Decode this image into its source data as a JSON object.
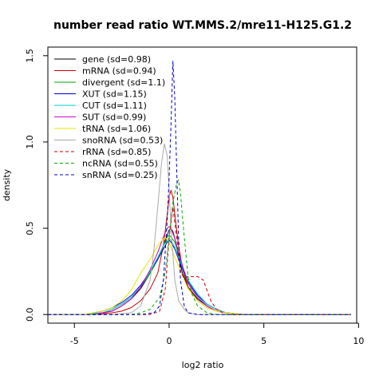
{
  "chart_data": {
    "type": "line",
    "title": "number read ratio WT.MMS.2/mre11-H125.G1.2",
    "xlabel": "log2 ratio",
    "ylabel": "density",
    "xlim": [
      -6.4,
      9.9
    ],
    "ylim": [
      -0.05,
      1.55
    ],
    "x_ticks": [
      -5,
      0,
      5,
      10
    ],
    "x_tick_labels": [
      "-5",
      "0",
      "5",
      "10"
    ],
    "y_ticks": [
      0.0,
      0.5,
      1.0,
      1.5
    ],
    "y_tick_labels": [
      "0.0",
      "0.5",
      "1.0",
      "1.5"
    ],
    "grid": false,
    "legend_position": "top-left",
    "series": [
      {
        "name": "gene (sd=0.98)",
        "color": "#000000",
        "dash": "solid",
        "x": [
          -6.4,
          -4.5,
          -3.5,
          -3,
          -2.5,
          -2,
          -1.5,
          -1,
          -0.6,
          -0.3,
          -0.1,
          0,
          0.1,
          0.2,
          0.35,
          0.5,
          0.7,
          1,
          1.5,
          2,
          2.5,
          3,
          4,
          9.6
        ],
        "y": [
          0,
          0,
          0.01,
          0.02,
          0.05,
          0.09,
          0.15,
          0.24,
          0.32,
          0.4,
          0.46,
          0.49,
          0.5,
          0.48,
          0.42,
          0.33,
          0.24,
          0.16,
          0.09,
          0.05,
          0.02,
          0.01,
          0,
          0
        ]
      },
      {
        "name": "mRNA (sd=0.94)",
        "color": "#cc0000",
        "dash": "solid",
        "x": [
          -6.4,
          -4,
          -3,
          -2.5,
          -2,
          -1.5,
          -1,
          -0.6,
          -0.3,
          -0.1,
          0,
          0.1,
          0.2,
          0.3,
          0.5,
          0.7,
          1,
          1.5,
          2,
          2.5,
          3,
          4,
          9.6
        ],
        "y": [
          0,
          0,
          0.01,
          0.02,
          0.04,
          0.08,
          0.15,
          0.24,
          0.4,
          0.58,
          0.68,
          0.72,
          0.68,
          0.58,
          0.4,
          0.27,
          0.16,
          0.08,
          0.04,
          0.02,
          0.01,
          0,
          0
        ]
      },
      {
        "name": "divergent (sd=1.1)",
        "color": "#00aa00",
        "dash": "solid",
        "x": [
          -6.4,
          -4.5,
          -3.5,
          -3,
          -2.5,
          -2,
          -1.5,
          -1,
          -0.6,
          -0.3,
          -0.1,
          0,
          0.1,
          0.3,
          0.5,
          0.8,
          1,
          1.5,
          2,
          2.5,
          3,
          4,
          9.6
        ],
        "y": [
          0,
          0,
          0.01,
          0.03,
          0.06,
          0.1,
          0.16,
          0.24,
          0.32,
          0.4,
          0.45,
          0.46,
          0.45,
          0.42,
          0.35,
          0.25,
          0.19,
          0.11,
          0.06,
          0.03,
          0.01,
          0,
          0
        ]
      },
      {
        "name": "XUT (sd=1.15)",
        "color": "#0000cc",
        "dash": "solid",
        "x": [
          -6.4,
          -4.5,
          -3.5,
          -3,
          -2.5,
          -2,
          -1.5,
          -1,
          -0.6,
          -0.3,
          -0.1,
          0,
          0.1,
          0.3,
          0.5,
          0.8,
          1,
          1.5,
          2,
          2.5,
          3,
          4,
          9.6
        ],
        "y": [
          0,
          0,
          0.02,
          0.04,
          0.07,
          0.11,
          0.17,
          0.25,
          0.32,
          0.38,
          0.42,
          0.43,
          0.42,
          0.38,
          0.32,
          0.24,
          0.19,
          0.11,
          0.06,
          0.03,
          0.01,
          0,
          0
        ]
      },
      {
        "name": "CUT (sd=1.11)",
        "color": "#00cccc",
        "dash": "solid",
        "x": [
          -6.4,
          -4.5,
          -3.5,
          -3,
          -2.5,
          -2,
          -1.5,
          -1,
          -0.6,
          -0.3,
          -0.1,
          0,
          0.1,
          0.3,
          0.5,
          0.8,
          1,
          1.5,
          2,
          2.5,
          3,
          4,
          9.6
        ],
        "y": [
          0,
          0,
          0.01,
          0.03,
          0.06,
          0.1,
          0.16,
          0.25,
          0.33,
          0.4,
          0.43,
          0.44,
          0.43,
          0.39,
          0.33,
          0.25,
          0.2,
          0.12,
          0.06,
          0.03,
          0.01,
          0,
          0
        ]
      },
      {
        "name": "SUT (sd=0.99)",
        "color": "#cc00cc",
        "dash": "solid",
        "x": [
          -6.4,
          -4,
          -3.5,
          -3,
          -2.5,
          -2,
          -1.5,
          -1,
          -0.6,
          -0.3,
          -0.1,
          0,
          0.1,
          0.3,
          0.5,
          0.8,
          1,
          1.5,
          2,
          2.5,
          3,
          4,
          9.6
        ],
        "y": [
          0,
          0,
          0.01,
          0.02,
          0.05,
          0.09,
          0.16,
          0.26,
          0.36,
          0.45,
          0.5,
          0.51,
          0.5,
          0.44,
          0.36,
          0.25,
          0.18,
          0.1,
          0.05,
          0.02,
          0.01,
          0,
          0
        ]
      },
      {
        "name": "tRNA (sd=1.06)",
        "color": "#e6e600",
        "dash": "solid",
        "x": [
          -6.4,
          -4.5,
          -4,
          -3.5,
          -3,
          -2.5,
          -2,
          -1.5,
          -1,
          -0.6,
          -0.3,
          -0.1,
          0,
          0.2,
          0.5,
          0.8,
          1,
          1.5,
          2,
          2.5,
          3,
          4,
          9.6
        ],
        "y": [
          0,
          0,
          0.01,
          0.02,
          0.04,
          0.08,
          0.14,
          0.24,
          0.32,
          0.4,
          0.44,
          0.44,
          0.42,
          0.36,
          0.28,
          0.2,
          0.15,
          0.08,
          0.04,
          0.02,
          0.01,
          0,
          0
        ]
      },
      {
        "name": "snoRNA (sd=0.53)",
        "color": "#aaaaaa",
        "dash": "solid",
        "x": [
          -6.4,
          -3,
          -2,
          -1.5,
          -1,
          -0.8,
          -0.6,
          -0.4,
          -0.25,
          -0.1,
          0,
          0.1,
          0.3,
          0.5,
          0.8,
          1,
          1.5,
          2,
          9.6
        ],
        "y": [
          0,
          0,
          0.01,
          0.05,
          0.2,
          0.38,
          0.62,
          0.88,
          0.99,
          0.92,
          0.72,
          0.5,
          0.2,
          0.08,
          0.03,
          0.01,
          0,
          0,
          0
        ]
      },
      {
        "name": "rRNA (sd=0.85)",
        "color": "#cc0000",
        "dash": "dashed",
        "x": [
          -6.4,
          -2,
          -1,
          -0.5,
          -0.2,
          0,
          0.2,
          0.4,
          0.6,
          0.8,
          1,
          1.2,
          1.5,
          1.8,
          2,
          2.2,
          2.5,
          3,
          9.6
        ],
        "y": [
          0,
          0,
          0,
          0.02,
          0.15,
          0.45,
          0.62,
          0.45,
          0.25,
          0.21,
          0.22,
          0.22,
          0.22,
          0.2,
          0.14,
          0.08,
          0.03,
          0,
          0
        ]
      },
      {
        "name": "ncRNA (sd=0.55)",
        "color": "#00aa00",
        "dash": "dashed",
        "x": [
          -6.4,
          -2,
          -1.5,
          -1,
          -0.5,
          -0.2,
          0,
          0.2,
          0.4,
          0.5,
          0.6,
          0.8,
          1,
          1.2,
          1.5,
          2,
          2.5,
          9.6
        ],
        "y": [
          0,
          0,
          0.01,
          0.03,
          0.1,
          0.25,
          0.45,
          0.65,
          0.76,
          0.78,
          0.7,
          0.45,
          0.22,
          0.12,
          0.05,
          0.01,
          0,
          0
        ]
      },
      {
        "name": "snRNA (sd=0.25)",
        "color": "#0000cc",
        "dash": "dashed",
        "x": [
          -6.4,
          -1.5,
          -0.8,
          -0.5,
          -0.3,
          -0.1,
          0,
          0.1,
          0.2,
          0.3,
          0.4,
          0.5,
          0.6,
          0.8,
          1,
          1.5,
          9.6
        ],
        "y": [
          0,
          0,
          0.01,
          0.05,
          0.2,
          0.55,
          0.8,
          1.1,
          1.47,
          1.25,
          0.85,
          0.45,
          0.2,
          0.05,
          0.01,
          0,
          0
        ]
      }
    ]
  }
}
